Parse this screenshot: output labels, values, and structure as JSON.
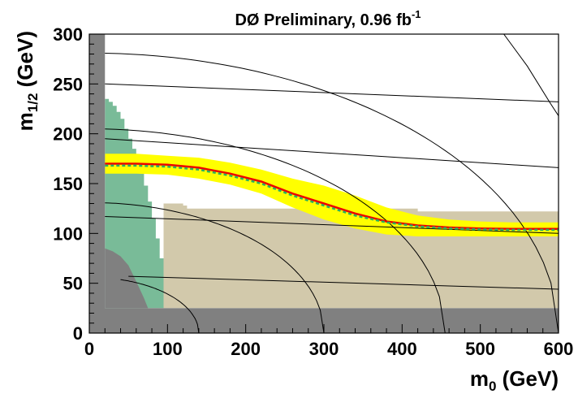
{
  "chart_data": {
    "type": "line",
    "title": "DØ Preliminary, 0.96 fb",
    "title_superscript": "-1",
    "xlabel": "m",
    "xlabel_sub": "0",
    "xlabel_unit": " (GeV)",
    "ylabel": "m",
    "ylabel_sub": "1/2",
    "ylabel_unit": " (GeV)",
    "xlim": [
      0,
      600
    ],
    "ylim": [
      0,
      300
    ],
    "x_ticks": [
      0,
      100,
      200,
      300,
      400,
      500,
      600
    ],
    "y_ticks": [
      0,
      50,
      100,
      150,
      200,
      250,
      300
    ],
    "x_tick_labels": [
      "0",
      "100",
      "200",
      "300",
      "400",
      "500",
      "600"
    ],
    "y_tick_labels": [
      "0",
      "50",
      "100",
      "150",
      "200",
      "250",
      "300"
    ],
    "grid": false,
    "legend": "none",
    "colors": {
      "dark_gray": "#808080",
      "tan": "#d2c9ab",
      "green": "#79bb98",
      "yellow": "#ffff00",
      "observed": "#ee0000",
      "expected": "#2ab060",
      "contour": "#000000"
    },
    "regions": {
      "dark_gray_x_edge": 20,
      "dark_gray_y_edge": 25,
      "dark_gray_corner": [
        [
          20,
          85
        ],
        [
          30,
          82
        ],
        [
          40,
          77
        ],
        [
          50,
          68
        ],
        [
          58,
          55
        ],
        [
          64,
          45
        ],
        [
          70,
          35
        ],
        [
          75,
          25
        ]
      ],
      "tan": [
        [
          95,
          25
        ],
        [
          95,
          130
        ],
        [
          120,
          130
        ],
        [
          120,
          128
        ],
        [
          125,
          128
        ],
        [
          125,
          125
        ],
        [
          420,
          125
        ],
        [
          420,
          122
        ],
        [
          600,
          122
        ],
        [
          600,
          25
        ]
      ],
      "green": [
        [
          20,
          25
        ],
        [
          20,
          235
        ],
        [
          25,
          235
        ],
        [
          25,
          232
        ],
        [
          30,
          232
        ],
        [
          30,
          228
        ],
        [
          35,
          228
        ],
        [
          35,
          222
        ],
        [
          40,
          222
        ],
        [
          40,
          215
        ],
        [
          45,
          215
        ],
        [
          45,
          205
        ],
        [
          50,
          205
        ],
        [
          50,
          195
        ],
        [
          55,
          195
        ],
        [
          55,
          185
        ],
        [
          60,
          185
        ],
        [
          60,
          172
        ],
        [
          65,
          172
        ],
        [
          65,
          160
        ],
        [
          70,
          160
        ],
        [
          70,
          148
        ],
        [
          75,
          148
        ],
        [
          75,
          132
        ],
        [
          80,
          132
        ],
        [
          80,
          115
        ],
        [
          85,
          115
        ],
        [
          85,
          95
        ],
        [
          90,
          95
        ],
        [
          90,
          75
        ],
        [
          95,
          75
        ],
        [
          95,
          25
        ]
      ]
    },
    "series": [
      {
        "role": "observed limit",
        "x": [
          20,
          60,
          100,
          140,
          180,
          220,
          260,
          300,
          340,
          380,
          420,
          460,
          500,
          540,
          580,
          600
        ],
        "y": [
          170,
          170,
          169,
          166,
          160,
          152,
          140,
          130,
          120,
          112,
          108,
          106,
          105,
          104.5,
          104.5,
          104.5
        ]
      },
      {
        "role": "expected limit",
        "x": [
          20,
          60,
          100,
          140,
          180,
          220,
          260,
          300,
          340,
          380,
          420,
          460,
          500,
          540,
          580,
          600
        ],
        "y": [
          168,
          168,
          167,
          164,
          158,
          150,
          138,
          128,
          118,
          111,
          107,
          105,
          104,
          103.5,
          103.5,
          103.5
        ]
      }
    ],
    "band": {
      "x": [
        20,
        60,
        100,
        140,
        180,
        220,
        260,
        300,
        340,
        380,
        420,
        460,
        500,
        540,
        580,
        600
      ],
      "upper": [
        180,
        180,
        178,
        176,
        171,
        164,
        155,
        148,
        138,
        126,
        118,
        114,
        112,
        111,
        111,
        111
      ],
      "lower": [
        160,
        160,
        159,
        155,
        149,
        140,
        126,
        114,
        105,
        99,
        97,
        97,
        97,
        97,
        97,
        97
      ]
    },
    "contours": [
      {
        "kind": "ellipse",
        "a": 600,
        "b": 281,
        "x_from": 20,
        "x_to": 600
      },
      {
        "kind": "ellipse",
        "a": 455,
        "b": 205,
        "x_from": 20,
        "x_to": 455
      },
      {
        "kind": "ellipse",
        "a": 300,
        "b": 131,
        "x_from": 20,
        "x_to": 300
      },
      {
        "kind": "ellipse",
        "a": 140,
        "b": 56,
        "x_from": 40,
        "x_to": 140
      },
      {
        "kind": "arc",
        "x": [
          530,
          560,
          590,
          600
        ],
        "y": [
          300,
          268,
          230,
          218
        ]
      },
      {
        "kind": "line",
        "x": [
          20,
          600
        ],
        "y": [
          250,
          232
        ]
      },
      {
        "kind": "line",
        "x": [
          20,
          600
        ],
        "y": [
          195,
          166
        ]
      },
      {
        "kind": "line",
        "x": [
          20,
          600
        ],
        "y": [
          117,
          100
        ]
      },
      {
        "kind": "line",
        "x": [
          50,
          600
        ],
        "y": [
          57,
          44
        ]
      }
    ]
  }
}
